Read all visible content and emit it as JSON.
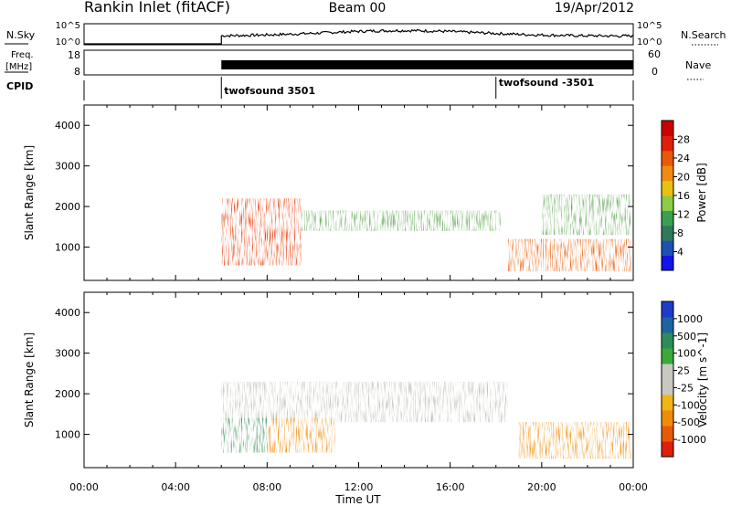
{
  "header": {
    "title": "Rankin Inlet (fitACF)",
    "beam": "Beam 00",
    "date": "19/Apr/2012"
  },
  "sky_panel": {
    "left_label": "N.Sky",
    "left_ticks": [
      "10^5",
      "10^0"
    ],
    "right_ticks": [
      "10^5",
      "10^0"
    ],
    "right_label": "N.Search"
  },
  "freq_panel": {
    "left_label_line1": "Freq.",
    "left_label_line2": "[MHz]",
    "left_ticks": [
      "18",
      "8"
    ],
    "right_ticks": [
      "60",
      "0"
    ],
    "right_label": "Nave"
  },
  "cpid": {
    "label": "CPID",
    "programs": [
      {
        "name": "twofsound 3501",
        "start_hour": 6.0
      },
      {
        "name": "twofsound -3501",
        "start_hour": 18.0
      }
    ]
  },
  "x_axis": {
    "label": "Time UT",
    "ticks": [
      "00:00",
      "04:00",
      "08:00",
      "12:00",
      "16:00",
      "20:00",
      "00:00"
    ],
    "range_hours": [
      0,
      24
    ],
    "data_start_hour": 6.0
  },
  "chart_data": [
    {
      "type": "heatmap",
      "name": "power",
      "ylabel": "Slant Range [km]",
      "yticks": [
        1000,
        2000,
        3000,
        4000
      ],
      "ylim": [
        180,
        4500
      ],
      "colorbar": {
        "label": "Power [dB]",
        "ticks": [
          "4",
          "8",
          "12",
          "16",
          "20",
          "24",
          "28"
        ],
        "colors": [
          "#1414e6",
          "#1e50b4",
          "#2f7a5c",
          "#3aa050",
          "#8ccc46",
          "#e8c010",
          "#f08c10",
          "#e85a08",
          "#e01e0a",
          "#cc0000"
        ]
      },
      "regions": [
        {
          "t": [
            6.0,
            18.2
          ],
          "r": [
            1400,
            1900
          ],
          "intensity": "low-medium",
          "color": "#5aa44c"
        },
        {
          "t": [
            6.0,
            9.5
          ],
          "r": [
            550,
            2200
          ],
          "intensity": "high",
          "color": "#e83c0a"
        },
        {
          "t": [
            18.5,
            23.9
          ],
          "r": [
            400,
            1200
          ],
          "intensity": "high",
          "color": "#e85a08"
        },
        {
          "t": [
            20.0,
            23.9
          ],
          "r": [
            1300,
            2300
          ],
          "intensity": "medium",
          "color": "#5aa44c"
        }
      ]
    },
    {
      "type": "heatmap",
      "name": "velocity",
      "ylabel": "Slant Range [km]",
      "yticks": [
        1000,
        2000,
        3000,
        4000
      ],
      "ylim": [
        180,
        4500
      ],
      "colorbar": {
        "label": "Velocity [m s^-1]",
        "ticks": [
          "1000",
          "500",
          "100",
          "25",
          "-25",
          "-100",
          "-500",
          "-1000"
        ],
        "colors": [
          "#1e3cc8",
          "#1e64a0",
          "#2e8c5a",
          "#3aaa3a",
          "#c8c8c0",
          "#c8c8c0",
          "#f0b414",
          "#f08c0a",
          "#e85a08",
          "#e01e0a"
        ]
      },
      "regions": [
        {
          "t": [
            6.0,
            18.5
          ],
          "r": [
            1300,
            2300
          ],
          "velocity": "near zero",
          "color": "#c0c0b8"
        },
        {
          "t": [
            6.0,
            8.0
          ],
          "r": [
            550,
            1400
          ],
          "velocity": "positive",
          "color": "#3a9058"
        },
        {
          "t": [
            8.0,
            11.0
          ],
          "r": [
            550,
            1400
          ],
          "velocity": "negative",
          "color": "#f08c0a"
        },
        {
          "t": [
            19.0,
            23.9
          ],
          "r": [
            400,
            1300
          ],
          "velocity": "negative",
          "color": "#f08c0a"
        }
      ]
    }
  ]
}
